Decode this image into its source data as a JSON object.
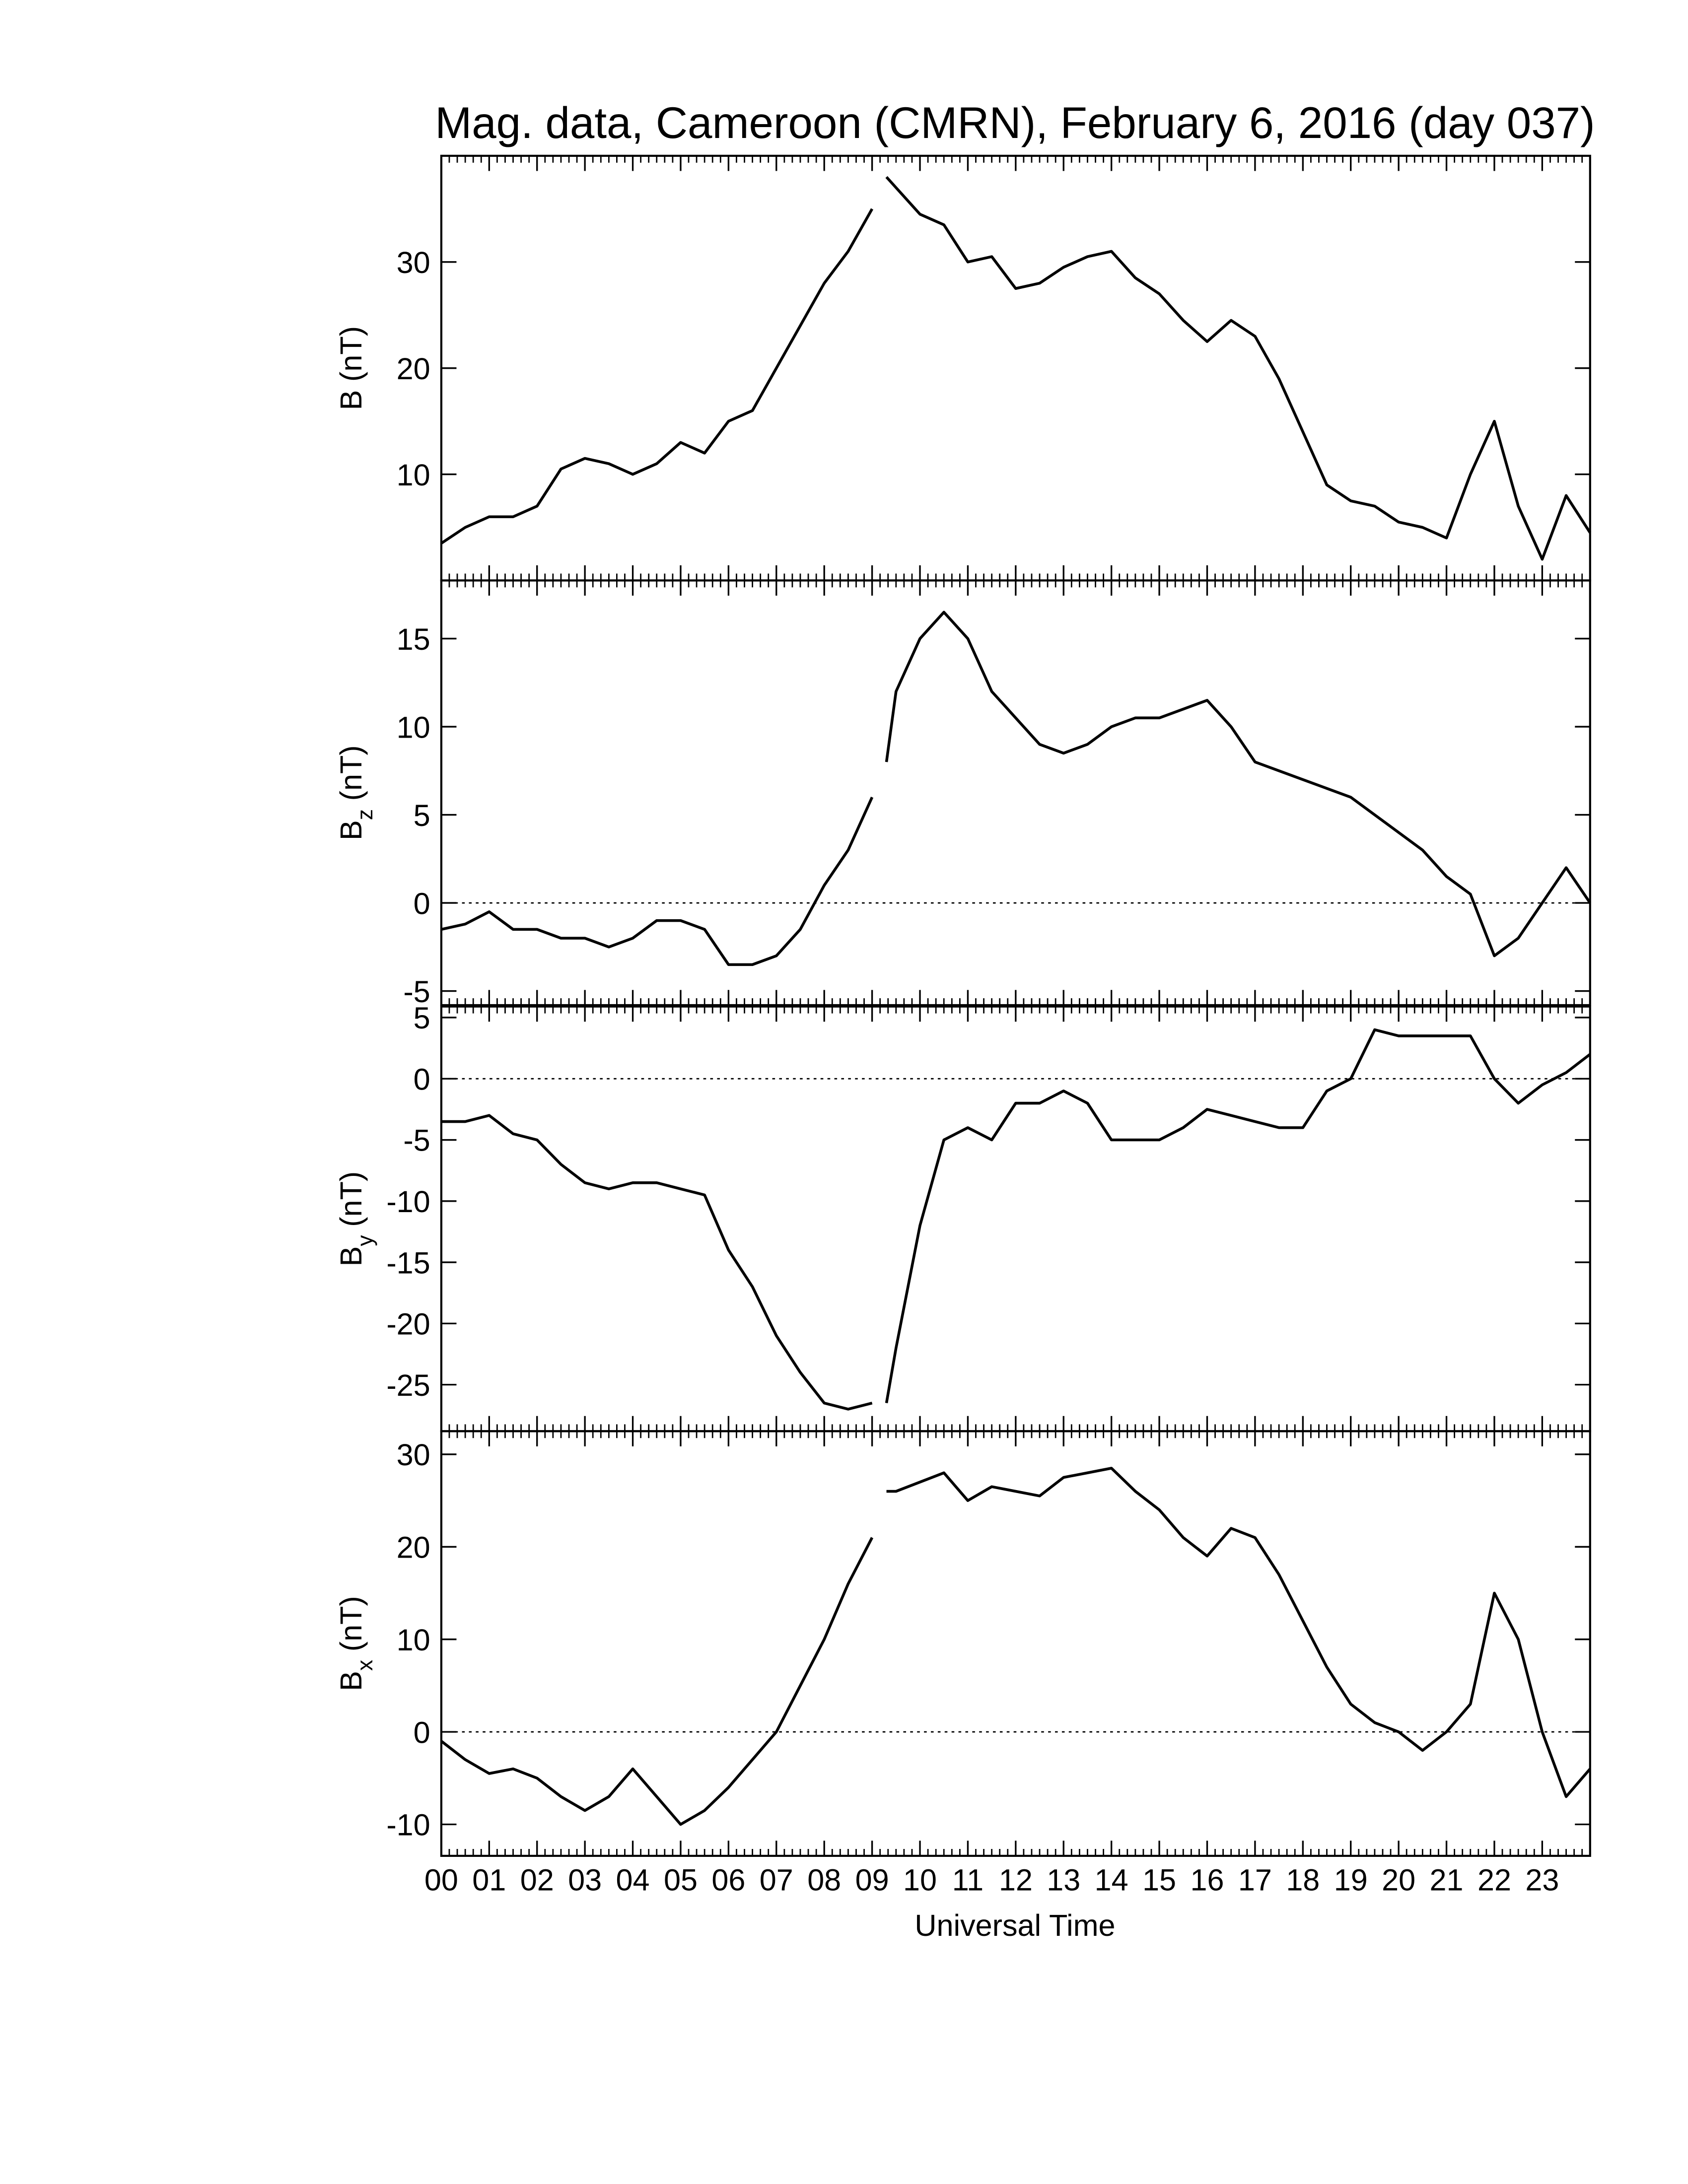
{
  "chart_data": [
    {
      "type": "line",
      "title": "Mag. data, Cameroon (CMRN), February 6, 2016 (day 037)",
      "ylabel": {
        "base": "B",
        "unit": "(nT)"
      },
      "color": "#000000",
      "xlim": [
        0,
        24
      ],
      "ylim": [
        0,
        40
      ],
      "yticks": [
        10,
        20,
        30
      ],
      "x": [
        0,
        0.5,
        1,
        1.5,
        2,
        2.5,
        3,
        3.5,
        4,
        4.5,
        5,
        5.5,
        6,
        6.5,
        7,
        7.5,
        8,
        8.5,
        9,
        9.15,
        9.3,
        9.5,
        10,
        10.5,
        11,
        11.5,
        12,
        12.5,
        13,
        13.5,
        14,
        14.5,
        15,
        15.5,
        16,
        16.5,
        17,
        17.5,
        18,
        18.5,
        19,
        19.5,
        20,
        20.5,
        21,
        21.5,
        22,
        22.5,
        23,
        23.5,
        24
      ],
      "values": [
        3.5,
        5,
        6,
        6,
        7,
        10.5,
        11.5,
        11,
        10,
        11,
        13,
        12,
        15,
        16,
        20,
        24,
        28,
        31,
        35,
        null,
        38,
        37,
        34.5,
        33.5,
        30,
        30.5,
        27.5,
        28,
        29.5,
        30.5,
        31,
        28.5,
        27,
        24.5,
        22.5,
        24.5,
        23,
        19,
        14,
        9,
        7.5,
        7,
        5.5,
        5,
        4,
        10,
        15,
        7,
        2,
        8,
        4.5
      ]
    },
    {
      "type": "line",
      "ylabel": {
        "base": "B",
        "sub": "z",
        "unit": "(nT)"
      },
      "color": "#000000",
      "zero_line": true,
      "xlim": [
        0,
        24
      ],
      "ylim": [
        -5.8,
        18.3
      ],
      "yticks": [
        -5,
        0,
        5,
        10,
        15
      ],
      "x": [
        0,
        0.5,
        1,
        1.5,
        2,
        2.5,
        3,
        3.5,
        4,
        4.5,
        5,
        5.5,
        6,
        6.5,
        7,
        7.5,
        8,
        8.5,
        9,
        9.15,
        9.3,
        9.5,
        10,
        10.5,
        11,
        11.5,
        12,
        12.5,
        13,
        13.5,
        14,
        14.5,
        15,
        15.5,
        16,
        16.5,
        17,
        17.5,
        18,
        18.5,
        19,
        19.5,
        20,
        20.5,
        21,
        21.5,
        22,
        22.5,
        23,
        23.5,
        24
      ],
      "values": [
        -1.5,
        -1.2,
        -0.5,
        -1.5,
        -1.5,
        -2,
        -2,
        -2.5,
        -2,
        -1,
        -1,
        -1.5,
        -3.5,
        -3.5,
        -3,
        -1.5,
        1,
        3,
        6,
        null,
        8,
        12,
        15,
        16.5,
        15,
        12,
        10.5,
        9,
        8.5,
        9,
        10,
        10.5,
        10.5,
        11,
        11.5,
        10,
        8,
        7.5,
        7,
        6.5,
        6,
        5,
        4,
        3,
        1.5,
        0.5,
        -3,
        -2,
        0,
        2,
        0
      ]
    },
    {
      "type": "line",
      "ylabel": {
        "base": "B",
        "sub": "y",
        "unit": "(nT)"
      },
      "color": "#000000",
      "zero_line": true,
      "xlim": [
        0,
        24
      ],
      "ylim": [
        -28.8,
        5.9
      ],
      "yticks": [
        -25,
        -20,
        -15,
        -10,
        -5,
        0,
        5
      ],
      "x": [
        0,
        0.5,
        1,
        1.5,
        2,
        2.5,
        3,
        3.5,
        4,
        4.5,
        5,
        5.5,
        6,
        6.5,
        7,
        7.5,
        8,
        8.5,
        9,
        9.15,
        9.3,
        9.5,
        10,
        10.5,
        11,
        11.5,
        12,
        12.5,
        13,
        13.5,
        14,
        14.5,
        15,
        15.5,
        16,
        16.5,
        17,
        17.5,
        18,
        18.5,
        19,
        19.5,
        20,
        20.5,
        21,
        21.5,
        22,
        22.5,
        23,
        23.5,
        24
      ],
      "values": [
        -3.5,
        -3.5,
        -3,
        -4.5,
        -5,
        -7,
        -8.5,
        -9,
        -8.5,
        -8.5,
        -9,
        -9.5,
        -14,
        -17,
        -21,
        -24,
        -26.5,
        -27,
        -26.5,
        null,
        -26.5,
        -22,
        -12,
        -5,
        -4,
        -5,
        -2,
        -2,
        -1,
        -2,
        -5,
        -5,
        -5,
        -4,
        -2.5,
        -3,
        -3.5,
        -4,
        -4,
        -1,
        0,
        4,
        3.5,
        3.5,
        3.5,
        3.5,
        0,
        -2,
        -0.5,
        0.5,
        2
      ]
    },
    {
      "type": "line",
      "ylabel": {
        "base": "B",
        "sub": "x",
        "unit": "(nT)"
      },
      "color": "#000000",
      "zero_line": true,
      "xlabel": "Universal Time",
      "xlim": [
        0,
        24
      ],
      "ylim": [
        -13.4,
        32.5
      ],
      "yticks": [
        -10,
        0,
        10,
        20,
        30
      ],
      "xticks": [
        {
          "value": 0,
          "label": "00"
        },
        {
          "value": 1,
          "label": "01"
        },
        {
          "value": 2,
          "label": "02"
        },
        {
          "value": 3,
          "label": "03"
        },
        {
          "value": 4,
          "label": "04"
        },
        {
          "value": 5,
          "label": "05"
        },
        {
          "value": 6,
          "label": "06"
        },
        {
          "value": 7,
          "label": "07"
        },
        {
          "value": 8,
          "label": "08"
        },
        {
          "value": 9,
          "label": "09"
        },
        10,
        11,
        12,
        13,
        14,
        15,
        16,
        17,
        18,
        19,
        20,
        21,
        22,
        23
      ],
      "x": [
        0,
        0.5,
        1,
        1.5,
        2,
        2.5,
        3,
        3.5,
        4,
        4.5,
        5,
        5.5,
        6,
        6.5,
        7,
        7.5,
        8,
        8.5,
        9,
        9.15,
        9.3,
        9.5,
        10,
        10.5,
        11,
        11.5,
        12,
        12.5,
        13,
        13.5,
        14,
        14.5,
        15,
        15.5,
        16,
        16.5,
        17,
        17.5,
        18,
        18.5,
        19,
        19.5,
        20,
        20.5,
        21,
        21.5,
        22,
        22.5,
        23,
        23.5,
        24
      ],
      "values": [
        -1,
        -3,
        -4.5,
        -4,
        -5,
        -7,
        -8.5,
        -7,
        -4,
        -7,
        -10,
        -8.5,
        -6,
        -3,
        0,
        5,
        10,
        16,
        21,
        null,
        26,
        26,
        27,
        28,
        25,
        26.5,
        26,
        25.5,
        27.5,
        28,
        28.5,
        26,
        24,
        21,
        19,
        22,
        21,
        17,
        12,
        7,
        3,
        1,
        0,
        -2,
        0,
        3,
        15,
        10,
        0,
        -7,
        -4
      ]
    }
  ]
}
